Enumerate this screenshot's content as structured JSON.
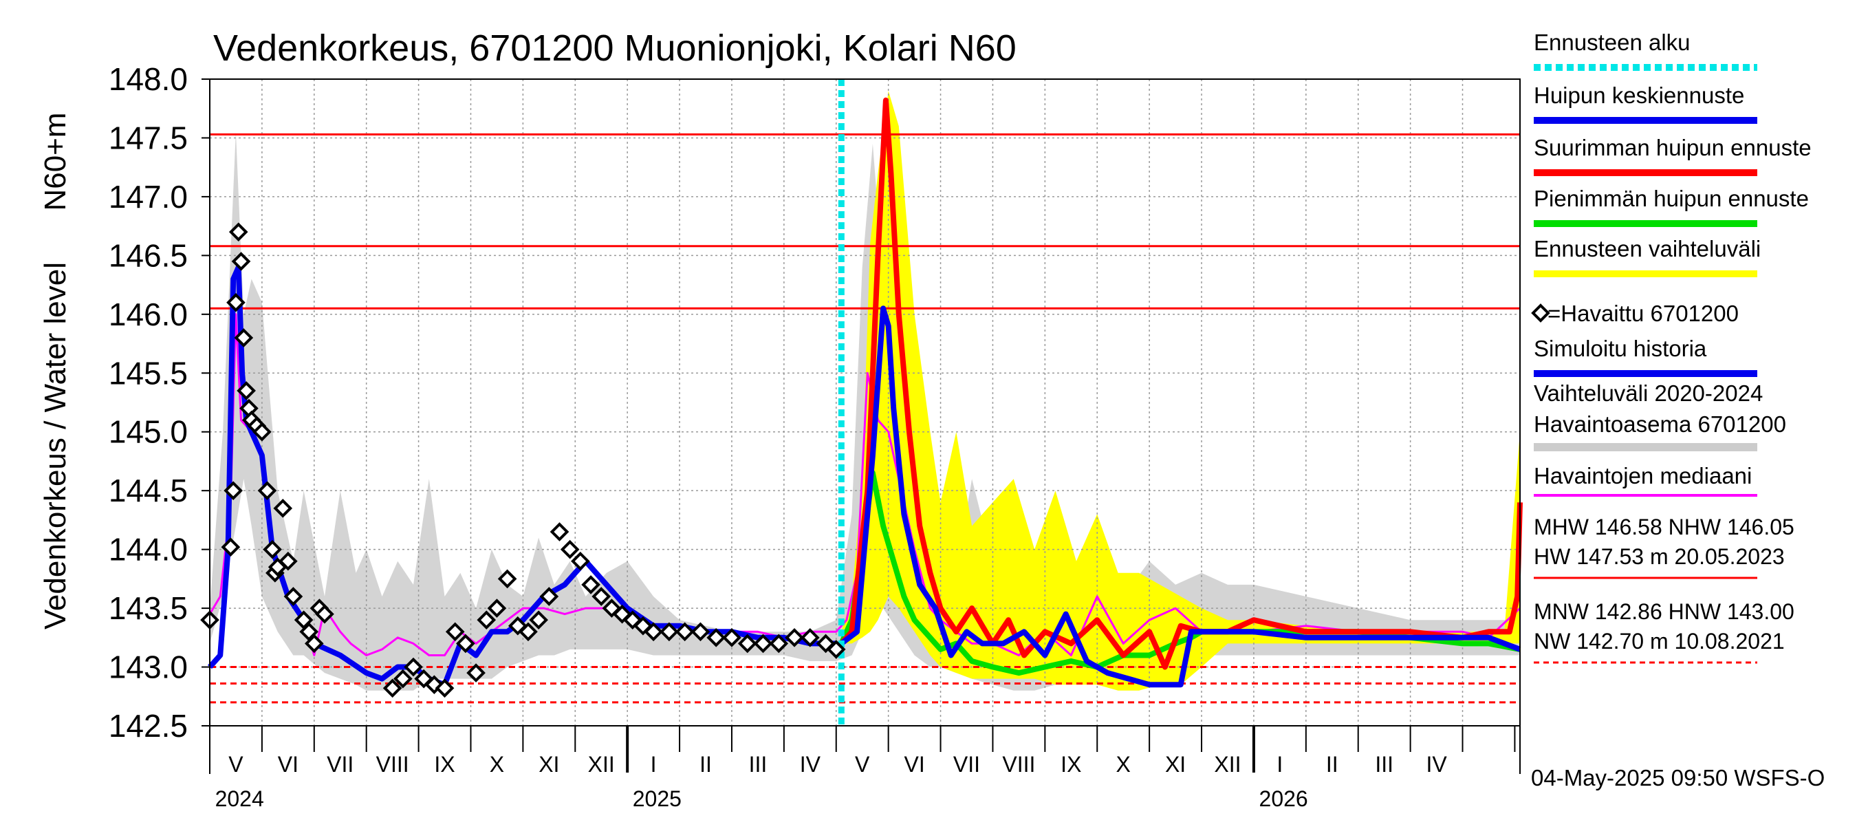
{
  "chart_data": {
    "type": "line",
    "title": "Vedenkorkeus, 6701200 Muonionjoki, Kolari N60",
    "ylabel_outer": "Vedenkorkeus / Water level",
    "ylabel_inner": "N60+m",
    "ylim": [
      142.5,
      148.0
    ],
    "yticks": [
      "148.0",
      "147.5",
      "147.0",
      "146.5",
      "146.0",
      "145.5",
      "145.0",
      "144.5",
      "144.0",
      "143.5",
      "143.0",
      "142.5"
    ],
    "x_domain": [
      0,
      25.1
    ],
    "months": [
      {
        "label": "V",
        "x": 0.5
      },
      {
        "label": "VI",
        "x": 1.5
      },
      {
        "label": "VII",
        "x": 2.5
      },
      {
        "label": "VIII",
        "x": 3.5
      },
      {
        "label": "IX",
        "x": 4.5
      },
      {
        "label": "X",
        "x": 5.5
      },
      {
        "label": "XI",
        "x": 6.5
      },
      {
        "label": "XII",
        "x": 7.5
      },
      {
        "label": "I",
        "x": 8.5
      },
      {
        "label": "II",
        "x": 9.5
      },
      {
        "label": "III",
        "x": 10.5
      },
      {
        "label": "IV",
        "x": 11.5
      },
      {
        "label": "V",
        "x": 12.5
      },
      {
        "label": "VI",
        "x": 13.5
      },
      {
        "label": "VII",
        "x": 14.5
      },
      {
        "label": "VIII",
        "x": 15.5
      },
      {
        "label": "IX",
        "x": 16.5
      },
      {
        "label": "X",
        "x": 17.5
      },
      {
        "label": "XI",
        "x": 18.5
      },
      {
        "label": "XII",
        "x": 19.5
      },
      {
        "label": "I",
        "x": 20.5
      },
      {
        "label": "II",
        "x": 21.5
      },
      {
        "label": "III",
        "x": 22.5
      },
      {
        "label": "IV",
        "x": 23.5
      }
    ],
    "years": [
      {
        "label": "2024",
        "x": 0.1
      },
      {
        "label": "2025",
        "x": 8.1
      },
      {
        "label": "2026",
        "x": 20.1
      }
    ],
    "forecast_start": 12.1,
    "hlines": [
      {
        "name": "HW",
        "value": 147.53,
        "style": "solid"
      },
      {
        "name": "MHW",
        "value": 146.58,
        "style": "solid"
      },
      {
        "name": "NHW",
        "value": 146.05,
        "style": "solid"
      },
      {
        "name": "HNW",
        "value": 143.0,
        "style": "dashed"
      },
      {
        "name": "MNW",
        "value": 142.86,
        "style": "dashed"
      },
      {
        "name": "NW",
        "value": 142.7,
        "style": "dashed"
      }
    ],
    "history_range": {
      "x": [
        0,
        0.25,
        0.5,
        0.65,
        0.8,
        1.0,
        1.3,
        1.6,
        1.8,
        2.2,
        2.5,
        2.8,
        3.0,
        3.3,
        3.6,
        3.9,
        4.2,
        4.5,
        4.8,
        5.1,
        5.4,
        5.7,
        6.0,
        6.3,
        6.6,
        6.9,
        7.2,
        7.6,
        8.0,
        8.5,
        9.0,
        10.0,
        11.0,
        11.5,
        12.0,
        12.3,
        12.5,
        12.7,
        12.9,
        13.2,
        13.5,
        13.8,
        14.0,
        14.3,
        14.6,
        15.0,
        15.4,
        15.8,
        16.2,
        16.6,
        17.0,
        17.5,
        18.0,
        18.5,
        19.0,
        19.5,
        20.0,
        21.0,
        22.0,
        23.0,
        24.0,
        24.5,
        25.1
      ],
      "upper": [
        143.5,
        145.0,
        147.55,
        146.0,
        146.3,
        146.1,
        144.5,
        143.9,
        144.5,
        143.6,
        144.5,
        143.8,
        144.0,
        143.6,
        143.9,
        143.7,
        144.6,
        143.6,
        143.8,
        143.5,
        144.0,
        143.7,
        143.6,
        144.1,
        143.7,
        143.9,
        143.6,
        143.8,
        143.9,
        143.6,
        143.4,
        143.3,
        143.3,
        143.3,
        143.4,
        144.3,
        146.4,
        147.45,
        146.3,
        145.6,
        145.1,
        144.2,
        144.4,
        143.8,
        144.6,
        143.9,
        144.0,
        143.8,
        144.1,
        143.7,
        143.8,
        143.6,
        143.9,
        143.7,
        143.8,
        143.7,
        143.7,
        143.6,
        143.5,
        143.4,
        143.4,
        143.4,
        143.4
      ],
      "lower": [
        143.2,
        143.6,
        144.2,
        144.6,
        144.2,
        143.6,
        143.3,
        143.1,
        143.1,
        142.95,
        142.9,
        142.85,
        142.8,
        142.8,
        142.8,
        142.8,
        142.9,
        142.9,
        142.9,
        142.9,
        142.9,
        143.0,
        143.05,
        143.1,
        143.1,
        143.15,
        143.15,
        143.15,
        143.15,
        143.1,
        143.1,
        143.1,
        143.1,
        143.05,
        143.05,
        143.1,
        143.3,
        143.6,
        143.5,
        143.3,
        143.1,
        143.0,
        143.0,
        142.95,
        142.9,
        142.85,
        142.8,
        142.8,
        142.85,
        142.9,
        142.95,
        143.0,
        143.0,
        143.05,
        143.1,
        143.1,
        143.1,
        143.1,
        143.1,
        143.1,
        143.1,
        143.1,
        143.1
      ]
    },
    "forecast_range": {
      "x": [
        12.1,
        12.3,
        12.5,
        12.65,
        12.8,
        13.0,
        13.2,
        13.5,
        13.8,
        14.0,
        14.3,
        14.6,
        15.0,
        15.4,
        15.8,
        16.2,
        16.6,
        17.0,
        17.4,
        17.8,
        18.2,
        18.6,
        19.0,
        19.5,
        20.0,
        21.0,
        22.0,
        23.0,
        24.0,
        24.5,
        24.8,
        25.1
      ],
      "upper": [
        143.3,
        143.6,
        144.6,
        146.6,
        147.2,
        147.9,
        147.6,
        146.0,
        145.0,
        144.4,
        145.0,
        144.2,
        144.4,
        144.6,
        144.0,
        144.5,
        143.9,
        144.3,
        143.8,
        143.8,
        143.7,
        143.6,
        143.5,
        143.4,
        143.4,
        143.35,
        143.3,
        143.3,
        143.3,
        143.3,
        143.3,
        145.0
      ],
      "lower": [
        143.2,
        143.2,
        143.25,
        143.3,
        143.4,
        143.6,
        143.5,
        143.3,
        143.1,
        143.0,
        142.95,
        142.9,
        142.9,
        142.9,
        142.9,
        142.85,
        142.85,
        142.85,
        142.8,
        142.8,
        142.85,
        142.85,
        143.0,
        143.2,
        143.2,
        143.2,
        143.2,
        143.2,
        143.2,
        143.2,
        143.2,
        143.2
      ]
    },
    "series": [
      {
        "name": "Havaintojen mediaani",
        "color": "#ff00ff",
        "x": [
          0,
          0.2,
          0.4,
          0.5,
          0.6,
          0.8,
          1.0,
          1.2,
          1.5,
          1.8,
          2.0,
          2.2,
          2.5,
          2.7,
          3.0,
          3.3,
          3.6,
          3.9,
          4.2,
          4.5,
          4.8,
          5.1,
          5.4,
          5.7,
          6.0,
          6.4,
          6.8,
          7.2,
          7.6,
          8.0,
          8.5,
          9.0,
          9.5,
          10.0,
          10.5,
          11.0,
          11.5,
          12.0,
          12.2,
          12.4,
          12.6,
          12.8,
          13.0,
          13.2,
          13.5,
          13.8,
          14.0,
          14.3,
          14.6,
          15.0,
          15.5,
          16.0,
          16.5,
          17.0,
          17.5,
          18.0,
          18.5,
          19.0,
          19.5,
          20.0,
          21.0,
          22.0,
          23.0,
          24.0,
          24.5,
          25.1
        ],
        "y": [
          143.45,
          143.6,
          144.4,
          146.0,
          145.1,
          145.0,
          144.8,
          144.0,
          143.6,
          143.4,
          143.1,
          143.5,
          143.3,
          143.2,
          143.1,
          143.15,
          143.25,
          143.2,
          143.1,
          143.1,
          143.3,
          143.2,
          143.3,
          143.4,
          143.5,
          143.5,
          143.45,
          143.5,
          143.5,
          143.45,
          143.35,
          143.35,
          143.3,
          143.3,
          143.3,
          143.25,
          143.3,
          143.3,
          143.4,
          143.8,
          145.5,
          145.1,
          145.0,
          144.6,
          144.0,
          143.5,
          143.4,
          143.3,
          143.2,
          143.2,
          143.1,
          143.3,
          143.1,
          143.6,
          143.2,
          143.4,
          143.5,
          143.3,
          143.3,
          143.3,
          143.35,
          143.3,
          143.3,
          143.3,
          143.25,
          143.5
        ]
      },
      {
        "name": "Simuloitu historia",
        "color": "#0000ee",
        "x": [
          0,
          0.2,
          0.35,
          0.45,
          0.55,
          0.62,
          0.7,
          0.8,
          1.0,
          1.2,
          1.5,
          1.8,
          2.0,
          2.5,
          3.0,
          3.3,
          3.6,
          3.9,
          4.2,
          4.5,
          4.8,
          5.1,
          5.4,
          5.7,
          6.0,
          6.4,
          6.8,
          7.2,
          7.6,
          8.0,
          8.5,
          9.0,
          9.5,
          10.0,
          10.5,
          11.0,
          11.5,
          12.0
        ],
        "y": [
          143.0,
          143.1,
          144.0,
          146.3,
          146.4,
          145.5,
          145.1,
          145.0,
          144.8,
          144.0,
          143.6,
          143.4,
          143.2,
          143.1,
          142.95,
          142.9,
          143.0,
          143.0,
          142.9,
          142.85,
          143.2,
          143.1,
          143.3,
          143.3,
          143.4,
          143.6,
          143.7,
          143.9,
          143.7,
          143.5,
          143.35,
          143.35,
          143.3,
          143.3,
          143.25,
          143.25,
          143.2,
          143.2
        ]
      },
      {
        "name": "Pienimmän huipun ennuste",
        "color": "#00dd00",
        "x": [
          12.1,
          12.3,
          12.5,
          12.7,
          12.9,
          13.1,
          13.3,
          13.5,
          13.7,
          14.0,
          14.3,
          14.6,
          15.0,
          15.5,
          16.0,
          16.5,
          17.0,
          17.5,
          18.0,
          18.5,
          18.8,
          19.0,
          19.3,
          20.0,
          21.0,
          22.0,
          23.0,
          24.0,
          24.5,
          25.1
        ],
        "y": [
          143.2,
          143.4,
          144.0,
          144.65,
          144.2,
          143.9,
          143.6,
          143.4,
          143.3,
          143.15,
          143.2,
          143.05,
          143.0,
          142.95,
          143.0,
          143.05,
          143.0,
          143.1,
          143.1,
          143.2,
          143.25,
          143.3,
          143.3,
          143.3,
          143.3,
          143.3,
          143.25,
          143.2,
          143.2,
          143.15
        ]
      },
      {
        "name": "Suurimman huipun ennuste",
        "color": "#ff0000",
        "x": [
          12.1,
          12.3,
          12.6,
          12.8,
          12.95,
          13.05,
          13.2,
          13.4,
          13.6,
          13.8,
          14.0,
          14.3,
          14.6,
          15.0,
          15.3,
          15.6,
          16.0,
          16.5,
          17.0,
          17.5,
          18.0,
          18.3,
          18.6,
          19.0,
          19.5,
          20.0,
          21.0,
          22.0,
          23.0,
          24.0,
          24.5,
          24.9,
          25.05,
          25.1
        ],
        "y": [
          143.2,
          143.3,
          144.5,
          146.5,
          147.82,
          147.2,
          146.0,
          145.0,
          144.2,
          143.8,
          143.5,
          143.3,
          143.5,
          143.2,
          143.4,
          143.1,
          143.3,
          143.2,
          143.4,
          143.1,
          143.3,
          143.0,
          143.35,
          143.3,
          143.3,
          143.4,
          143.3,
          143.3,
          143.3,
          143.25,
          143.3,
          143.3,
          143.6,
          144.4
        ]
      },
      {
        "name": "Huipun keskiennuste",
        "color": "#0000ee",
        "x": [
          12.1,
          12.4,
          12.7,
          12.9,
          13.0,
          13.1,
          13.3,
          13.6,
          13.9,
          14.2,
          14.5,
          14.8,
          15.2,
          15.6,
          16.0,
          16.4,
          16.8,
          17.2,
          17.6,
          18.0,
          18.3,
          18.6,
          18.8,
          19.0,
          19.5,
          20.0,
          21.0,
          22.0,
          23.0,
          24.0,
          24.5,
          25.1
        ],
        "y": [
          143.2,
          143.3,
          144.8,
          146.05,
          145.9,
          145.2,
          144.3,
          143.7,
          143.5,
          143.1,
          143.3,
          143.2,
          143.2,
          143.3,
          143.1,
          143.45,
          143.05,
          142.95,
          142.9,
          142.85,
          142.85,
          142.85,
          143.3,
          143.3,
          143.3,
          143.3,
          143.25,
          143.25,
          143.25,
          143.25,
          143.25,
          143.15
        ]
      }
    ],
    "observed": {
      "name": "=Havaittu 6701200",
      "x": [
        0.0,
        0.4,
        0.45,
        0.5,
        0.55,
        0.6,
        0.65,
        0.7,
        0.75,
        0.8,
        0.9,
        1.0,
        1.1,
        1.2,
        1.25,
        1.3,
        1.4,
        1.5,
        1.6,
        1.8,
        1.9,
        2.0,
        2.1,
        2.2,
        3.5,
        3.7,
        3.9,
        4.1,
        4.3,
        4.5,
        4.7,
        4.9,
        5.1,
        5.3,
        5.5,
        5.7,
        5.9,
        6.1,
        6.3,
        6.5,
        6.7,
        6.9,
        7.1,
        7.3,
        7.5,
        7.7,
        7.9,
        8.1,
        8.3,
        8.5,
        8.8,
        9.1,
        9.4,
        9.7,
        10.0,
        10.3,
        10.6,
        10.9,
        11.2,
        11.5,
        11.8,
        12.0
      ],
      "y": [
        143.4,
        144.02,
        144.5,
        146.1,
        146.7,
        146.45,
        145.8,
        145.35,
        145.2,
        145.1,
        145.05,
        145.0,
        144.5,
        144.0,
        143.8,
        143.85,
        144.35,
        143.9,
        143.6,
        143.4,
        143.3,
        143.2,
        143.5,
        143.45,
        142.82,
        142.9,
        143.0,
        142.9,
        142.85,
        142.82,
        143.3,
        143.2,
        142.95,
        143.4,
        143.5,
        143.75,
        143.35,
        143.3,
        143.4,
        143.6,
        144.15,
        144.0,
        143.9,
        143.7,
        143.6,
        143.5,
        143.45,
        143.4,
        143.35,
        143.3,
        143.3,
        143.3,
        143.3,
        143.25,
        143.25,
        143.2,
        143.2,
        143.2,
        143.25,
        143.25,
        143.2,
        143.15
      ]
    },
    "legend": [
      {
        "label": "Ennusteen alku",
        "color": "#00e6e6",
        "style": "dotted"
      },
      {
        "label": "Huipun keskiennuste",
        "color": "#0000ee",
        "style": "solid"
      },
      {
        "label": "Suurimman huipun ennuste",
        "color": "#ff0000",
        "style": "solid"
      },
      {
        "label": "Pienimmän huipun ennuste",
        "color": "#00dd00",
        "style": "solid"
      },
      {
        "label": "Ennusteen vaihteluväli",
        "color": "#ffff00",
        "style": "solid"
      },
      {
        "label": "=Havaittu 6701200",
        "color": "#000000",
        "style": "diamond"
      },
      {
        "label": "Simuloitu historia",
        "color": "#0000ee",
        "style": "solid"
      },
      {
        "label": "Vaihteluväli 2020-2024",
        "label2": " Havaintoasema 6701200",
        "color": "#cccccc",
        "style": "solid"
      },
      {
        "label": "Havaintojen mediaani",
        "color": "#ff00ff",
        "style": "solid"
      }
    ],
    "stats": [
      {
        "line1": "MHW 146.58 NHW 146.05",
        "line2": "HW 147.53 m 20.05.2023",
        "line_style": "solid"
      },
      {
        "line1": "MNW 142.86 HNW 143.00",
        "line2": "NW 142.70 m 10.08.2021",
        "line_style": "dashed"
      }
    ],
    "footer": "04-May-2025 09:50 WSFS-O"
  }
}
